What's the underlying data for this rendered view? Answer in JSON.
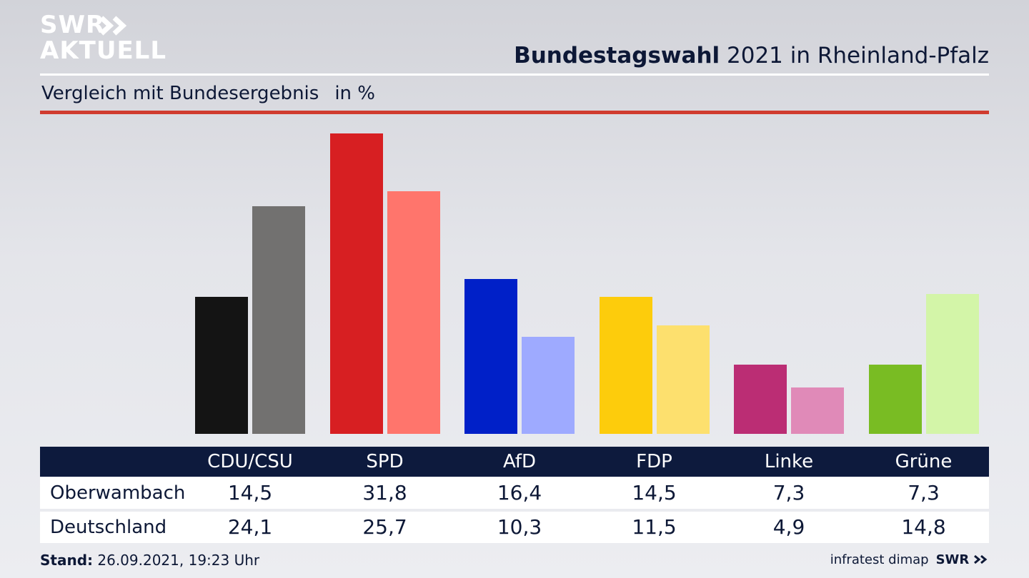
{
  "header": {
    "logo_line1": "SWR",
    "logo_line2": "AKTUELL",
    "title_bold": "Bundestagswahl",
    "title_rest": " 2021 in Rheinland-Pfalz",
    "subtitle": "Vergleich mit Bundesergebnis",
    "unit": "in %"
  },
  "colors": {
    "accent_red": "#d03b2f",
    "navy": "#0d1a3d",
    "logo_icon": "chevron-double-right-icon"
  },
  "chart_data": {
    "type": "bar",
    "title": "",
    "xlabel": "",
    "ylabel": "",
    "ylim": [
      0,
      31.8
    ],
    "categories": [
      "CDU/CSU",
      "SPD",
      "AfD",
      "FDP",
      "Linke",
      "Grüne"
    ],
    "series": [
      {
        "name": "Oberwambach",
        "values": [
          14.5,
          31.8,
          16.4,
          14.5,
          7.3,
          7.3
        ],
        "labels": [
          "14,5",
          "31,8",
          "16,4",
          "14,5",
          "7,3",
          "7,3"
        ],
        "colors": [
          "#141414",
          "#d71f22",
          "#0020c8",
          "#fdcc0c",
          "#bb2d74",
          "#79bc23"
        ]
      },
      {
        "name": "Deutschland",
        "values": [
          24.1,
          25.7,
          10.3,
          11.5,
          4.9,
          14.8
        ],
        "labels": [
          "24,1",
          "25,7",
          "10,3",
          "11,5",
          "4,9",
          "14,8"
        ],
        "colors": [
          "#727170",
          "#ff756c",
          "#9eaaff",
          "#fde06e",
          "#e08ab8",
          "#d3f5a8"
        ]
      }
    ]
  },
  "footer": {
    "stand_label": "Stand:",
    "stand_value": " 26.09.2021, 19:23 Uhr",
    "source": "infratest dimap",
    "brand": "SWR"
  }
}
